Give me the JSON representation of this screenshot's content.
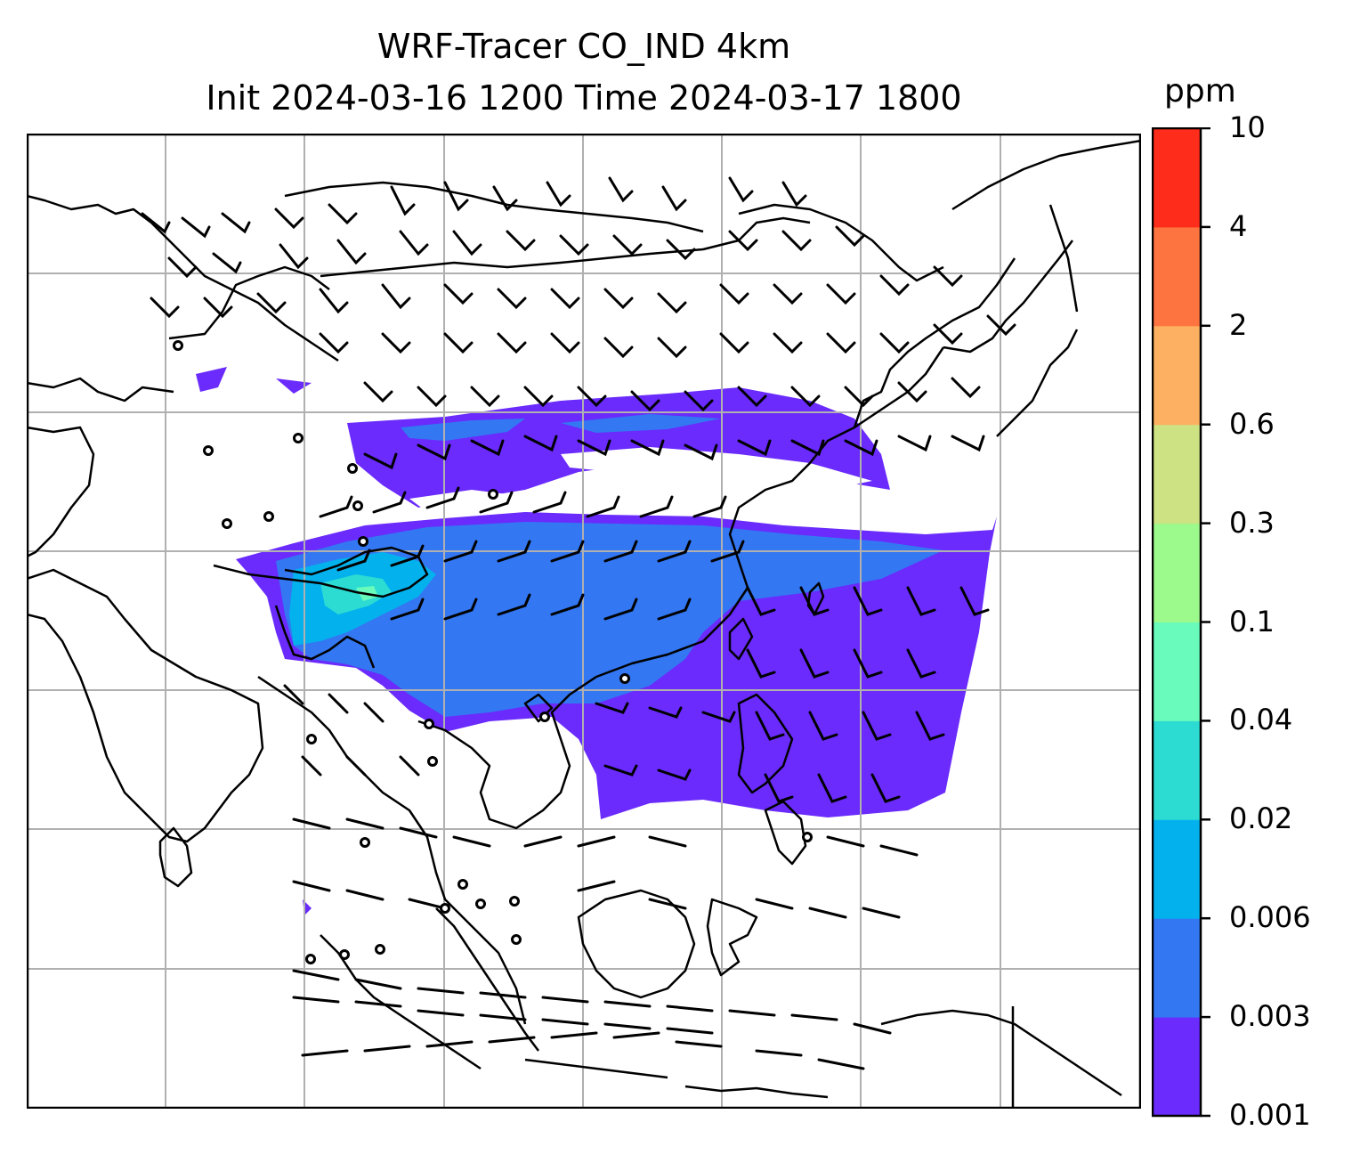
{
  "title": {
    "line1": "WRF-Tracer CO_IND 4km",
    "line2": "Init 2024-03-16 1200 Time 2024-03-17 1800"
  },
  "colorbar": {
    "unit": "ppm",
    "tick_labels": [
      "0.001",
      "0.003",
      "0.006",
      "0.02",
      "0.04",
      "0.1",
      "0.3",
      "0.6",
      "2",
      "4",
      "10"
    ],
    "colors": [
      "#6a2bfc",
      "#3377f2",
      "#03b2ed",
      "#2cdbd2",
      "#68fbbb",
      "#9cf98c",
      "#cde283",
      "#fdb061",
      "#fd7440",
      "#fd2c1b"
    ]
  },
  "map": {
    "region": "South / Southeast / East Asia",
    "overlays": [
      "coastlines",
      "country-borders",
      "lat-lon-gridlines",
      "wind-barbs",
      "co-tracer-concentration"
    ],
    "colors": {
      "gridline": "#b0b0b0",
      "coastline": "#000000",
      "barb": "#000000"
    }
  }
}
